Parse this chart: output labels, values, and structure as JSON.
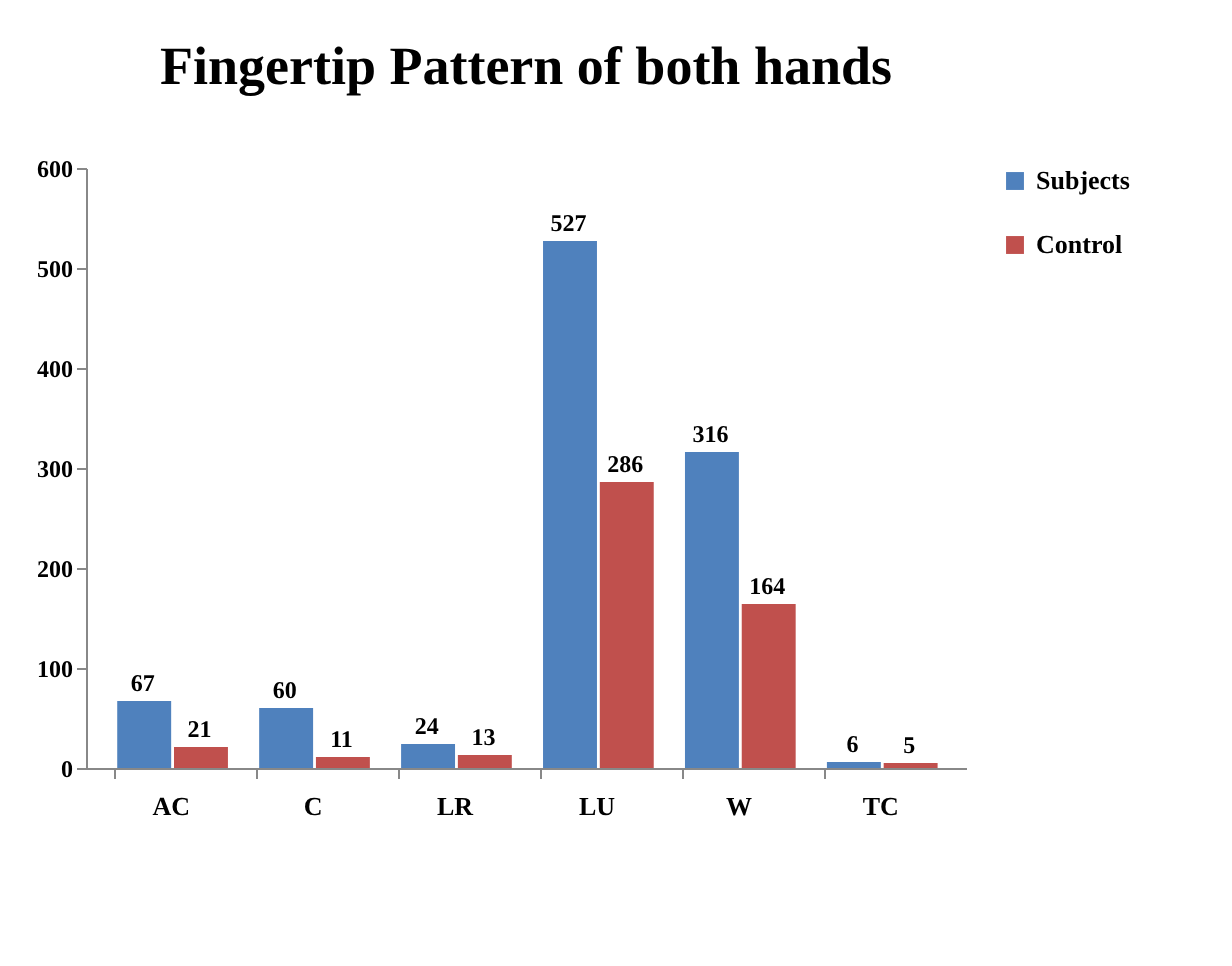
{
  "chart_data": {
    "type": "bar",
    "title": "Fingertip Pattern of both hands",
    "categories": [
      "AC",
      "C",
      "LR",
      "LU",
      "W",
      "TC"
    ],
    "series": [
      {
        "name": "Subjects",
        "color": "#4f81bd",
        "values": [
          67,
          60,
          24,
          527,
          316,
          6
        ]
      },
      {
        "name": "Control",
        "color": "#c0504d",
        "values": [
          21,
          11,
          13,
          286,
          164,
          5
        ]
      }
    ],
    "ylim": [
      0,
      600
    ],
    "yticks": [
      0,
      100,
      200,
      300,
      400,
      500,
      600
    ],
    "grid": false,
    "legend": "right",
    "data_labels": true
  }
}
